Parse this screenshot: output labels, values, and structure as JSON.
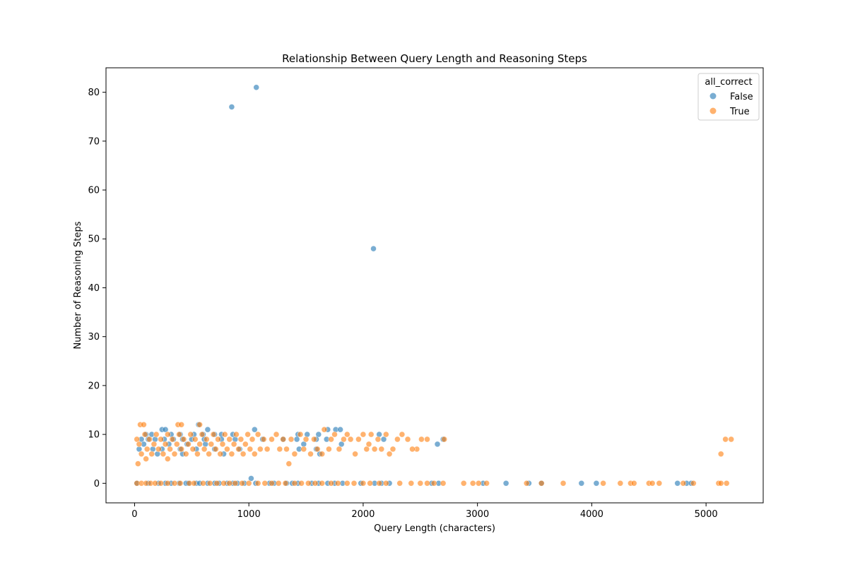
{
  "chart_data": {
    "type": "scatter",
    "title": "Relationship Between Query Length and Reasoning Steps",
    "xlabel": "Query Length (characters)",
    "ylabel": "Number of Reasoning Steps",
    "xlim": [
      -250,
      5500
    ],
    "ylim": [
      -4,
      85
    ],
    "xticks": [
      0,
      1000,
      2000,
      3000,
      4000,
      5000
    ],
    "yticks": [
      0,
      10,
      20,
      30,
      40,
      50,
      60,
      70,
      80
    ],
    "grid": false,
    "legend": {
      "title": "all_correct",
      "placement": "top-right"
    },
    "series": [
      {
        "name": "False",
        "color": "#1f77b4",
        "points": [
          [
            850,
            77
          ],
          [
            1065,
            81
          ],
          [
            2090,
            48
          ],
          [
            1020,
            1
          ],
          [
            560,
            12
          ],
          [
            1050,
            11
          ],
          [
            1690,
            11
          ],
          [
            1760,
            11
          ],
          [
            1800,
            11
          ],
          [
            240,
            11
          ],
          [
            270,
            11
          ],
          [
            640,
            11
          ],
          [
            100,
            10
          ],
          [
            150,
            10
          ],
          [
            320,
            10
          ],
          [
            400,
            10
          ],
          [
            520,
            10
          ],
          [
            600,
            10
          ],
          [
            700,
            10
          ],
          [
            760,
            10
          ],
          [
            860,
            10
          ],
          [
            1430,
            10
          ],
          [
            1510,
            10
          ],
          [
            1610,
            10
          ],
          [
            2140,
            10
          ],
          [
            60,
            9
          ],
          [
            120,
            9
          ],
          [
            180,
            9
          ],
          [
            260,
            9
          ],
          [
            340,
            9
          ],
          [
            420,
            9
          ],
          [
            500,
            9
          ],
          [
            610,
            9
          ],
          [
            760,
            9
          ],
          [
            880,
            9
          ],
          [
            1120,
            9
          ],
          [
            1300,
            9
          ],
          [
            1420,
            9
          ],
          [
            1590,
            9
          ],
          [
            1680,
            9
          ],
          [
            2180,
            9
          ],
          [
            2700,
            9
          ],
          [
            80,
            8
          ],
          [
            300,
            8
          ],
          [
            460,
            8
          ],
          [
            620,
            8
          ],
          [
            1480,
            8
          ],
          [
            1810,
            8
          ],
          [
            2650,
            8
          ],
          [
            40,
            7
          ],
          [
            160,
            7
          ],
          [
            240,
            7
          ],
          [
            400,
            7
          ],
          [
            540,
            7
          ],
          [
            700,
            7
          ],
          [
            920,
            7
          ],
          [
            1440,
            7
          ],
          [
            1590,
            7
          ],
          [
            200,
            6
          ],
          [
            420,
            6
          ],
          [
            780,
            6
          ],
          [
            1620,
            6
          ],
          [
            20,
            0
          ],
          [
            120,
            0
          ],
          [
            210,
            0
          ],
          [
            270,
            0
          ],
          [
            320,
            0
          ],
          [
            390,
            0
          ],
          [
            450,
            0
          ],
          [
            470,
            0
          ],
          [
            540,
            0
          ],
          [
            570,
            0
          ],
          [
            640,
            0
          ],
          [
            700,
            0
          ],
          [
            740,
            0
          ],
          [
            810,
            0
          ],
          [
            860,
            0
          ],
          [
            900,
            0
          ],
          [
            960,
            0
          ],
          [
            1060,
            0
          ],
          [
            1180,
            0
          ],
          [
            1220,
            0
          ],
          [
            1330,
            0
          ],
          [
            1380,
            0
          ],
          [
            1430,
            0
          ],
          [
            1550,
            0
          ],
          [
            1610,
            0
          ],
          [
            1690,
            0
          ],
          [
            1750,
            0
          ],
          [
            1820,
            0
          ],
          [
            1980,
            0
          ],
          [
            2100,
            0
          ],
          [
            2160,
            0
          ],
          [
            2230,
            0
          ],
          [
            2600,
            0
          ],
          [
            2660,
            0
          ],
          [
            3050,
            0
          ],
          [
            3250,
            0
          ],
          [
            3450,
            0
          ],
          [
            3560,
            0
          ],
          [
            3910,
            0
          ],
          [
            4040,
            0
          ],
          [
            4750,
            0
          ],
          [
            4830,
            0
          ],
          [
            4870,
            0
          ]
        ]
      },
      {
        "name": "True",
        "color": "#ff7f0e",
        "points": [
          [
            30,
            4
          ],
          [
            50,
            12
          ],
          [
            80,
            12
          ],
          [
            380,
            12
          ],
          [
            410,
            12
          ],
          [
            570,
            12
          ],
          [
            1350,
            4
          ],
          [
            290,
            5
          ],
          [
            100,
            5
          ],
          [
            5130,
            6
          ],
          [
            5170,
            9
          ],
          [
            5220,
            9
          ],
          [
            2710,
            9
          ],
          [
            2470,
            7
          ],
          [
            2510,
            9
          ],
          [
            2560,
            9
          ],
          [
            20,
            9
          ],
          [
            40,
            8
          ],
          [
            60,
            6
          ],
          [
            90,
            10
          ],
          [
            110,
            7
          ],
          [
            130,
            9
          ],
          [
            150,
            6
          ],
          [
            170,
            8
          ],
          [
            190,
            10
          ],
          [
            210,
            7
          ],
          [
            230,
            9
          ],
          [
            250,
            6
          ],
          [
            270,
            8
          ],
          [
            290,
            10
          ],
          [
            310,
            7
          ],
          [
            330,
            9
          ],
          [
            350,
            6
          ],
          [
            370,
            8
          ],
          [
            390,
            10
          ],
          [
            410,
            7
          ],
          [
            430,
            9
          ],
          [
            450,
            6
          ],
          [
            470,
            8
          ],
          [
            490,
            10
          ],
          [
            510,
            7
          ],
          [
            530,
            9
          ],
          [
            550,
            6
          ],
          [
            570,
            8
          ],
          [
            590,
            10
          ],
          [
            610,
            7
          ],
          [
            630,
            9
          ],
          [
            650,
            6
          ],
          [
            670,
            8
          ],
          [
            690,
            10
          ],
          [
            710,
            7
          ],
          [
            730,
            9
          ],
          [
            750,
            6
          ],
          [
            770,
            8
          ],
          [
            790,
            10
          ],
          [
            810,
            7
          ],
          [
            830,
            9
          ],
          [
            850,
            6
          ],
          [
            870,
            8
          ],
          [
            890,
            10
          ],
          [
            910,
            7
          ],
          [
            930,
            9
          ],
          [
            950,
            6
          ],
          [
            970,
            8
          ],
          [
            990,
            10
          ],
          [
            1010,
            7
          ],
          [
            1030,
            9
          ],
          [
            1050,
            6
          ],
          [
            1080,
            10
          ],
          [
            1100,
            7
          ],
          [
            1130,
            9
          ],
          [
            1160,
            7
          ],
          [
            1200,
            9
          ],
          [
            1240,
            10
          ],
          [
            1270,
            7
          ],
          [
            1300,
            9
          ],
          [
            1330,
            7
          ],
          [
            1370,
            9
          ],
          [
            1400,
            6
          ],
          [
            1450,
            10
          ],
          [
            1480,
            7
          ],
          [
            1500,
            9
          ],
          [
            1540,
            6
          ],
          [
            1570,
            9
          ],
          [
            1600,
            7
          ],
          [
            1640,
            6
          ],
          [
            1660,
            11
          ],
          [
            1700,
            7
          ],
          [
            1720,
            9
          ],
          [
            1750,
            10
          ],
          [
            1790,
            7
          ],
          [
            1830,
            9
          ],
          [
            1860,
            10
          ],
          [
            1890,
            9
          ],
          [
            1930,
            6
          ],
          [
            1960,
            9
          ],
          [
            2000,
            10
          ],
          [
            2030,
            7
          ],
          [
            2050,
            8
          ],
          [
            2070,
            10
          ],
          [
            2100,
            7
          ],
          [
            2130,
            9
          ],
          [
            2160,
            7
          ],
          [
            2200,
            10
          ],
          [
            2230,
            6
          ],
          [
            2260,
            7
          ],
          [
            2300,
            9
          ],
          [
            2340,
            10
          ],
          [
            2390,
            9
          ],
          [
            2430,
            7
          ],
          [
            20,
            0
          ],
          [
            60,
            0
          ],
          [
            100,
            0
          ],
          [
            140,
            0
          ],
          [
            180,
            0
          ],
          [
            230,
            0
          ],
          [
            290,
            0
          ],
          [
            350,
            0
          ],
          [
            400,
            0
          ],
          [
            480,
            0
          ],
          [
            520,
            0
          ],
          [
            600,
            0
          ],
          [
            660,
            0
          ],
          [
            720,
            0
          ],
          [
            780,
            0
          ],
          [
            830,
            0
          ],
          [
            880,
            0
          ],
          [
            940,
            0
          ],
          [
            1000,
            0
          ],
          [
            1080,
            0
          ],
          [
            1140,
            0
          ],
          [
            1200,
            0
          ],
          [
            1260,
            0
          ],
          [
            1320,
            0
          ],
          [
            1400,
            0
          ],
          [
            1460,
            0
          ],
          [
            1520,
            0
          ],
          [
            1580,
            0
          ],
          [
            1640,
            0
          ],
          [
            1720,
            0
          ],
          [
            1780,
            0
          ],
          [
            1860,
            0
          ],
          [
            1920,
            0
          ],
          [
            2000,
            0
          ],
          [
            2060,
            0
          ],
          [
            2140,
            0
          ],
          [
            2200,
            0
          ],
          [
            2320,
            0
          ],
          [
            2420,
            0
          ],
          [
            2500,
            0
          ],
          [
            2560,
            0
          ],
          [
            2620,
            0
          ],
          [
            2700,
            0
          ],
          [
            2880,
            0
          ],
          [
            2960,
            0
          ],
          [
            3010,
            0
          ],
          [
            3080,
            0
          ],
          [
            3430,
            0
          ],
          [
            3560,
            0
          ],
          [
            3750,
            0
          ],
          [
            4100,
            0
          ],
          [
            4250,
            0
          ],
          [
            4340,
            0
          ],
          [
            4370,
            0
          ],
          [
            4500,
            0
          ],
          [
            4530,
            0
          ],
          [
            4590,
            0
          ],
          [
            4800,
            0
          ],
          [
            4890,
            0
          ],
          [
            5110,
            0
          ],
          [
            5130,
            0
          ],
          [
            5180,
            0
          ]
        ]
      }
    ]
  }
}
